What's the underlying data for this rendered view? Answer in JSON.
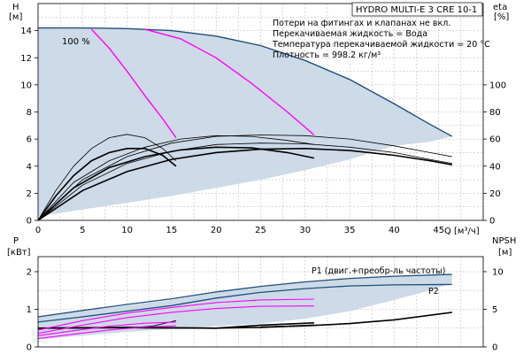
{
  "chart_data": [
    {
      "type": "line",
      "panel": "head-efficiency",
      "title_box": "HYDRO MULTI-E 3 CRE 10-1",
      "notes": [
        "Потери на фитингах и клапанах не вкл.",
        "Перекачиваемая жидкость = Вода",
        "Температура перекачиваемой жидкости = 20 °C",
        "Плотность = 998.2 кг/м³"
      ],
      "speed_label": "100 %",
      "ylabel": "H",
      "yunit": "[м]",
      "y2label": "eta",
      "y2unit": "[%]",
      "xlabel": "Q",
      "xunit": "[м³/ч]",
      "xlim": [
        0,
        50
      ],
      "ylim": [
        0,
        16
      ],
      "y2lim": [
        0,
        160
      ],
      "x_ticks": [
        0,
        5,
        10,
        15,
        20,
        25,
        30,
        35,
        40,
        45
      ],
      "y_ticks": [
        0,
        2,
        4,
        6,
        8,
        10,
        12,
        14
      ],
      "y2_ticks": [
        0,
        20,
        40,
        60,
        80,
        100
      ],
      "grid": true,
      "operating_area": {
        "color": "#c8d6e5",
        "upper": [
          [
            0,
            14.2
          ],
          [
            5,
            14.2
          ],
          [
            10,
            14.15
          ],
          [
            15,
            14.0
          ],
          [
            20,
            13.6
          ],
          [
            25,
            12.9
          ],
          [
            30,
            11.8
          ],
          [
            35,
            10.4
          ],
          [
            40,
            8.6
          ],
          [
            44,
            7.1
          ],
          [
            46.5,
            6.2
          ]
        ],
        "lower": [
          [
            0,
            0.3
          ],
          [
            5,
            0.8
          ],
          [
            10,
            1.3
          ],
          [
            15,
            1.8
          ],
          [
            20,
            2.4
          ],
          [
            25,
            3.0
          ],
          [
            30,
            3.7
          ],
          [
            35,
            4.5
          ],
          [
            40,
            5.5
          ],
          [
            44,
            5.8
          ],
          [
            46.5,
            6.2
          ]
        ]
      },
      "head_curves": [
        {
          "color": "#1f4e79",
          "points": [
            [
              0,
              14.2
            ],
            [
              5,
              14.2
            ],
            [
              10,
              14.15
            ],
            [
              15,
              14.0
            ],
            [
              20,
              13.6
            ],
            [
              25,
              12.9
            ],
            [
              30,
              11.8
            ],
            [
              35,
              10.4
            ],
            [
              40,
              8.6
            ],
            [
              44,
              7.1
            ],
            [
              46.5,
              6.2
            ]
          ]
        },
        {
          "color": "#ff00ff",
          "points": [
            [
              6,
              14.1
            ],
            [
              8,
              12.7
            ],
            [
              10,
              11.0
            ],
            [
              12,
              9.2
            ],
            [
              14,
              7.5
            ],
            [
              15.5,
              6.1
            ]
          ]
        },
        {
          "color": "#ff00ff",
          "points": [
            [
              12,
              14.1
            ],
            [
              16,
              13.4
            ],
            [
              20,
              12.0
            ],
            [
              24,
              10.1
            ],
            [
              28,
              8.0
            ],
            [
              31,
              6.3
            ]
          ]
        }
      ],
      "efficiency_curves": [
        {
          "width": 0.8,
          "points": [
            [
              0,
              0
            ],
            [
              2,
              22
            ],
            [
              4,
              40
            ],
            [
              6,
              53
            ],
            [
              8,
              61
            ],
            [
              10,
              63.5
            ],
            [
              12,
              61
            ],
            [
              14,
              53
            ],
            [
              15.5,
              44
            ]
          ]
        },
        {
          "width": 1.6,
          "points": [
            [
              0,
              0
            ],
            [
              2,
              18
            ],
            [
              4,
              33
            ],
            [
              6,
              44
            ],
            [
              8,
              50
            ],
            [
              10,
              53
            ],
            [
              12,
              53
            ],
            [
              14,
              48
            ],
            [
              15.5,
              40
            ]
          ]
        },
        {
          "width": 0.8,
          "points": [
            [
              0,
              0
            ],
            [
              5,
              30
            ],
            [
              10,
              47
            ],
            [
              15,
              57
            ],
            [
              20,
              62
            ],
            [
              25,
              63
            ],
            [
              30,
              62.5
            ],
            [
              35,
              60
            ],
            [
              40,
              55
            ],
            [
              44,
              50
            ],
            [
              46.5,
              47
            ]
          ]
        },
        {
          "width": 0.8,
          "points": [
            [
              0,
              0
            ],
            [
              5,
              26
            ],
            [
              10,
              42
            ],
            [
              15,
              51
            ],
            [
              20,
              56
            ],
            [
              25,
              57
            ],
            [
              30,
              56.5
            ],
            [
              35,
              54
            ],
            [
              40,
              50
            ],
            [
              44,
              45
            ],
            [
              46.5,
              42
            ]
          ]
        },
        {
          "width": 0.8,
          "points": [
            [
              0,
              0
            ],
            [
              4,
              28
            ],
            [
              8,
              44
            ],
            [
              12,
              54
            ],
            [
              16,
              60
            ],
            [
              20,
              62.5
            ],
            [
              24,
              62
            ],
            [
              28,
              59
            ],
            [
              31,
              56
            ]
          ]
        },
        {
          "width": 1.6,
          "points": [
            [
              0,
              0
            ],
            [
              4,
              24
            ],
            [
              8,
              39
            ],
            [
              12,
              47
            ],
            [
              16,
              52
            ],
            [
              20,
              54
            ],
            [
              24,
              53.5
            ],
            [
              28,
              50
            ],
            [
              31,
              46
            ]
          ]
        },
        {
          "width": 1.6,
          "points": [
            [
              0,
              0
            ],
            [
              5,
              22
            ],
            [
              10,
              36
            ],
            [
              15,
              45
            ],
            [
              20,
              50
            ],
            [
              25,
              52.5
            ],
            [
              30,
              53
            ],
            [
              35,
              51.5
            ],
            [
              40,
              48
            ],
            [
              44,
              44
            ],
            [
              46.5,
              41
            ]
          ]
        }
      ]
    },
    {
      "type": "line",
      "panel": "power-npsh",
      "ylabel": "P",
      "yunit": "[кВт]",
      "y2label": "NPSH",
      "y2unit": "[м]",
      "xlim": [
        0,
        50
      ],
      "ylim": [
        0,
        2.4
      ],
      "y2lim": [
        0,
        12
      ],
      "y_ticks": [
        0,
        1,
        2
      ],
      "y2_ticks": [
        0,
        5,
        10
      ],
      "grid": true,
      "series_labels": {
        "p1": "P1 (двиг.+преобр-ль частоты)",
        "p2": "P2"
      },
      "operating_area": {
        "color": "#c8d6e5",
        "upper": [
          [
            0,
            0.8
          ],
          [
            5,
            0.95
          ],
          [
            10,
            1.1
          ],
          [
            15,
            1.25
          ],
          [
            20,
            1.45
          ],
          [
            25,
            1.6
          ],
          [
            30,
            1.73
          ],
          [
            35,
            1.82
          ],
          [
            40,
            1.88
          ],
          [
            46.5,
            1.92
          ]
        ],
        "lower": [
          [
            0,
            0.2
          ],
          [
            5,
            0.3
          ],
          [
            10,
            0.4
          ],
          [
            15,
            0.48
          ],
          [
            20,
            0.55
          ],
          [
            25,
            0.62
          ],
          [
            30,
            0.75
          ],
          [
            35,
            0.95
          ],
          [
            40,
            1.25
          ],
          [
            44,
            1.5
          ],
          [
            46.5,
            1.7
          ]
        ]
      },
      "power_curves": [
        {
          "name": "P1",
          "color": "#1f4e79",
          "points": [
            [
              0,
              0.8
            ],
            [
              5,
              0.97
            ],
            [
              10,
              1.13
            ],
            [
              15,
              1.28
            ],
            [
              20,
              1.46
            ],
            [
              25,
              1.61
            ],
            [
              30,
              1.73
            ],
            [
              35,
              1.82
            ],
            [
              40,
              1.88
            ],
            [
              46.5,
              1.93
            ]
          ]
        },
        {
          "name": "P2",
          "color": "#1f4e79",
          "points": [
            [
              0,
              0.66
            ],
            [
              5,
              0.8
            ],
            [
              10,
              0.95
            ],
            [
              15,
              1.1
            ],
            [
              20,
              1.3
            ],
            [
              25,
              1.45
            ],
            [
              30,
              1.55
            ],
            [
              35,
              1.62
            ],
            [
              40,
              1.65
            ],
            [
              46.5,
              1.66
            ]
          ]
        },
        {
          "color": "#ff00ff",
          "points": [
            [
              0,
              0.45
            ],
            [
              5,
              0.7
            ],
            [
              10,
              0.9
            ],
            [
              15,
              1.05
            ],
            [
              20,
              1.18
            ],
            [
              25,
              1.25
            ],
            [
              31,
              1.27
            ]
          ]
        },
        {
          "color": "#ff00ff",
          "points": [
            [
              0,
              0.36
            ],
            [
              5,
              0.58
            ],
            [
              10,
              0.78
            ],
            [
              15,
              0.92
            ],
            [
              20,
              1.02
            ],
            [
              25,
              1.08
            ],
            [
              31,
              1.09
            ]
          ]
        },
        {
          "color": "#ff00ff",
          "points": [
            [
              0,
              0.3
            ],
            [
              4,
              0.43
            ],
            [
              8,
              0.55
            ],
            [
              12,
              0.63
            ],
            [
              15.5,
              0.66
            ]
          ]
        },
        {
          "color": "#ff00ff",
          "points": [
            [
              0,
              0.22
            ],
            [
              4,
              0.34
            ],
            [
              8,
              0.45
            ],
            [
              12,
              0.53
            ],
            [
              15.5,
              0.56
            ]
          ]
        }
      ],
      "npsh_curves": [
        {
          "width": 1.6,
          "points": [
            [
              0,
              2.5
            ],
            [
              10,
              2.6
            ],
            [
              20,
              2.5
            ],
            [
              25,
              2.6
            ],
            [
              31,
              2.9
            ]
          ]
        },
        {
          "width": 1.6,
          "points": [
            [
              0,
              2.5
            ],
            [
              10,
              2.55
            ],
            [
              20,
              2.5
            ],
            [
              25,
              2.9
            ],
            [
              31,
              3.2
            ]
          ]
        },
        {
          "width": 0.9,
          "points": [
            [
              10,
              2.5
            ],
            [
              13,
              2.8
            ],
            [
              15.5,
              3.5
            ]
          ]
        },
        {
          "width": 1.6,
          "points": [
            [
              25,
              2.65
            ],
            [
              30,
              2.8
            ],
            [
              35,
              3.1
            ],
            [
              40,
              3.6
            ],
            [
              46.5,
              4.6
            ]
          ]
        }
      ]
    }
  ]
}
